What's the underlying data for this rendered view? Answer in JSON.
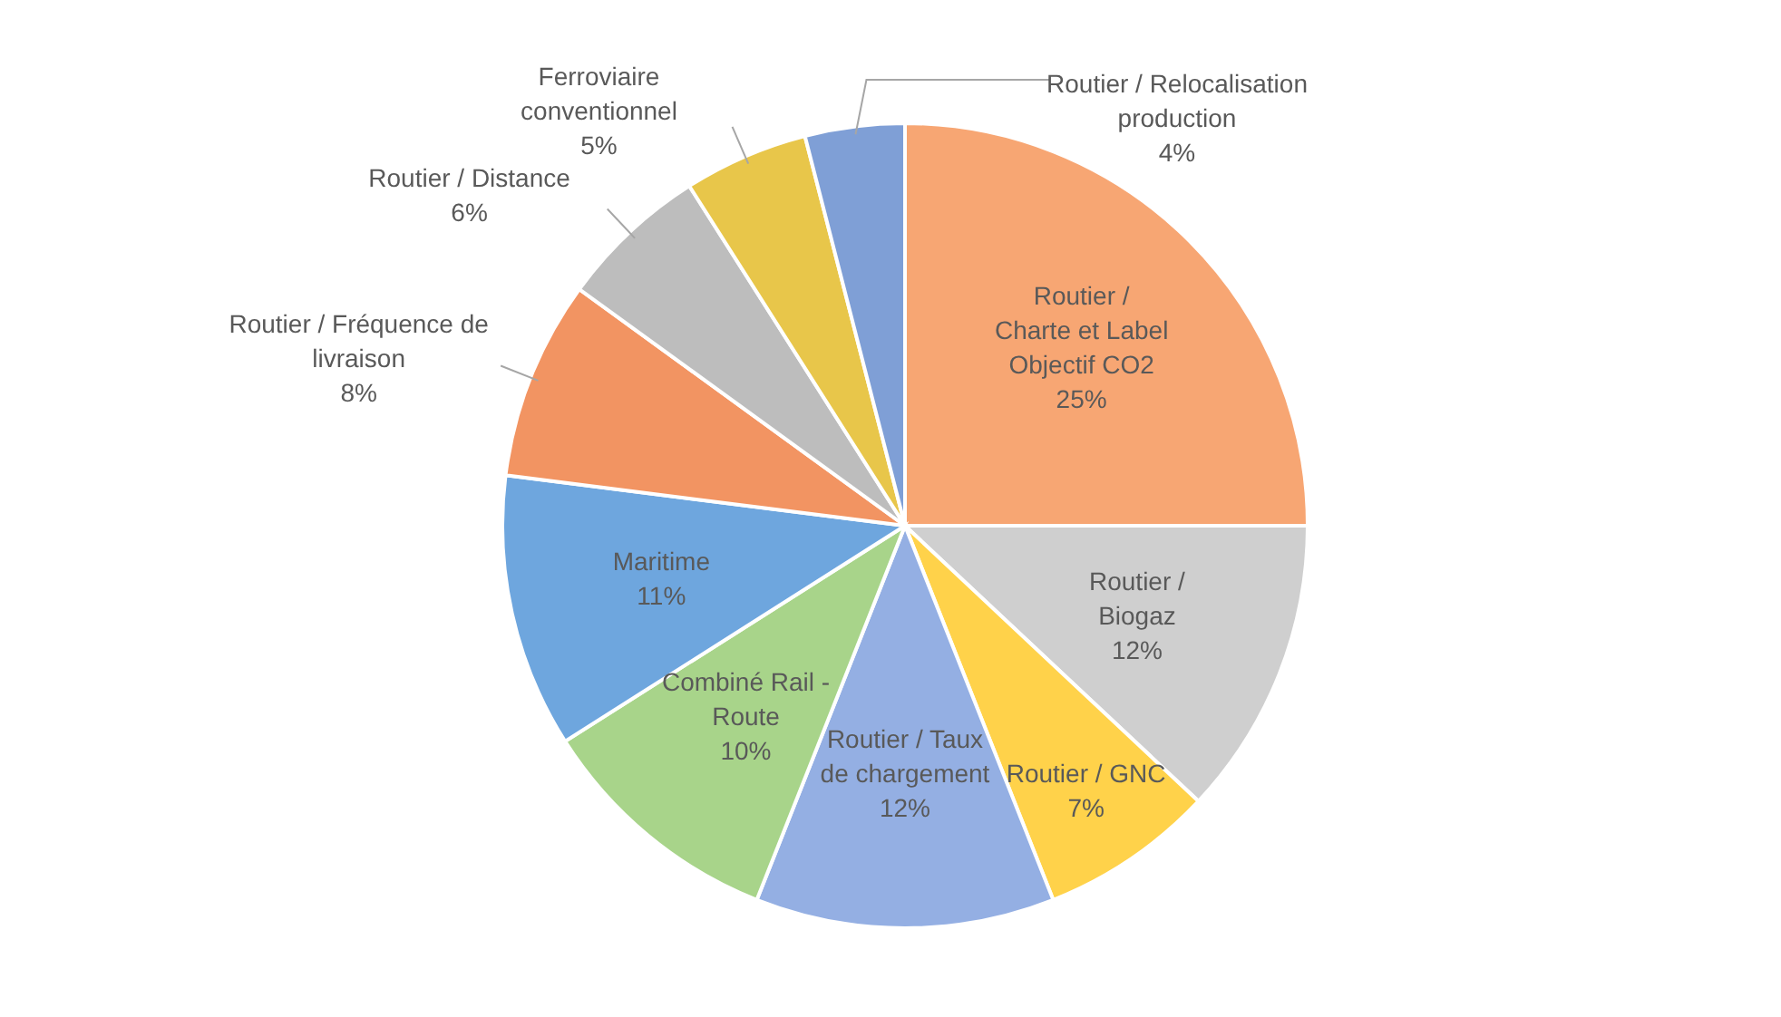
{
  "chart_data": {
    "type": "pie",
    "categories": [
      "Routier / Charte et Label Objectif CO2",
      "Routier / Biogaz",
      "Routier / GNC",
      "Routier / Taux de chargement",
      "Combiné Rail - Route",
      "Maritime",
      "Routier / Fréquence de livraison",
      "Routier / Distance",
      "Ferroviaire conventionnel",
      "Routier / Relocalisation production"
    ],
    "values": [
      25,
      12,
      7,
      12,
      10,
      11,
      8,
      6,
      5,
      4
    ],
    "value_labels": [
      "25%",
      "12%",
      "7%",
      "12%",
      "10%",
      "11%",
      "8%",
      "6%",
      "5%",
      "4%"
    ],
    "colors": [
      "#f7a673",
      "#cfcfcf",
      "#ffd24a",
      "#94afe3",
      "#a8d48a",
      "#6ea6de",
      "#f29462",
      "#bdbdbd",
      "#e8c64a",
      "#7f9fd6"
    ]
  }
}
